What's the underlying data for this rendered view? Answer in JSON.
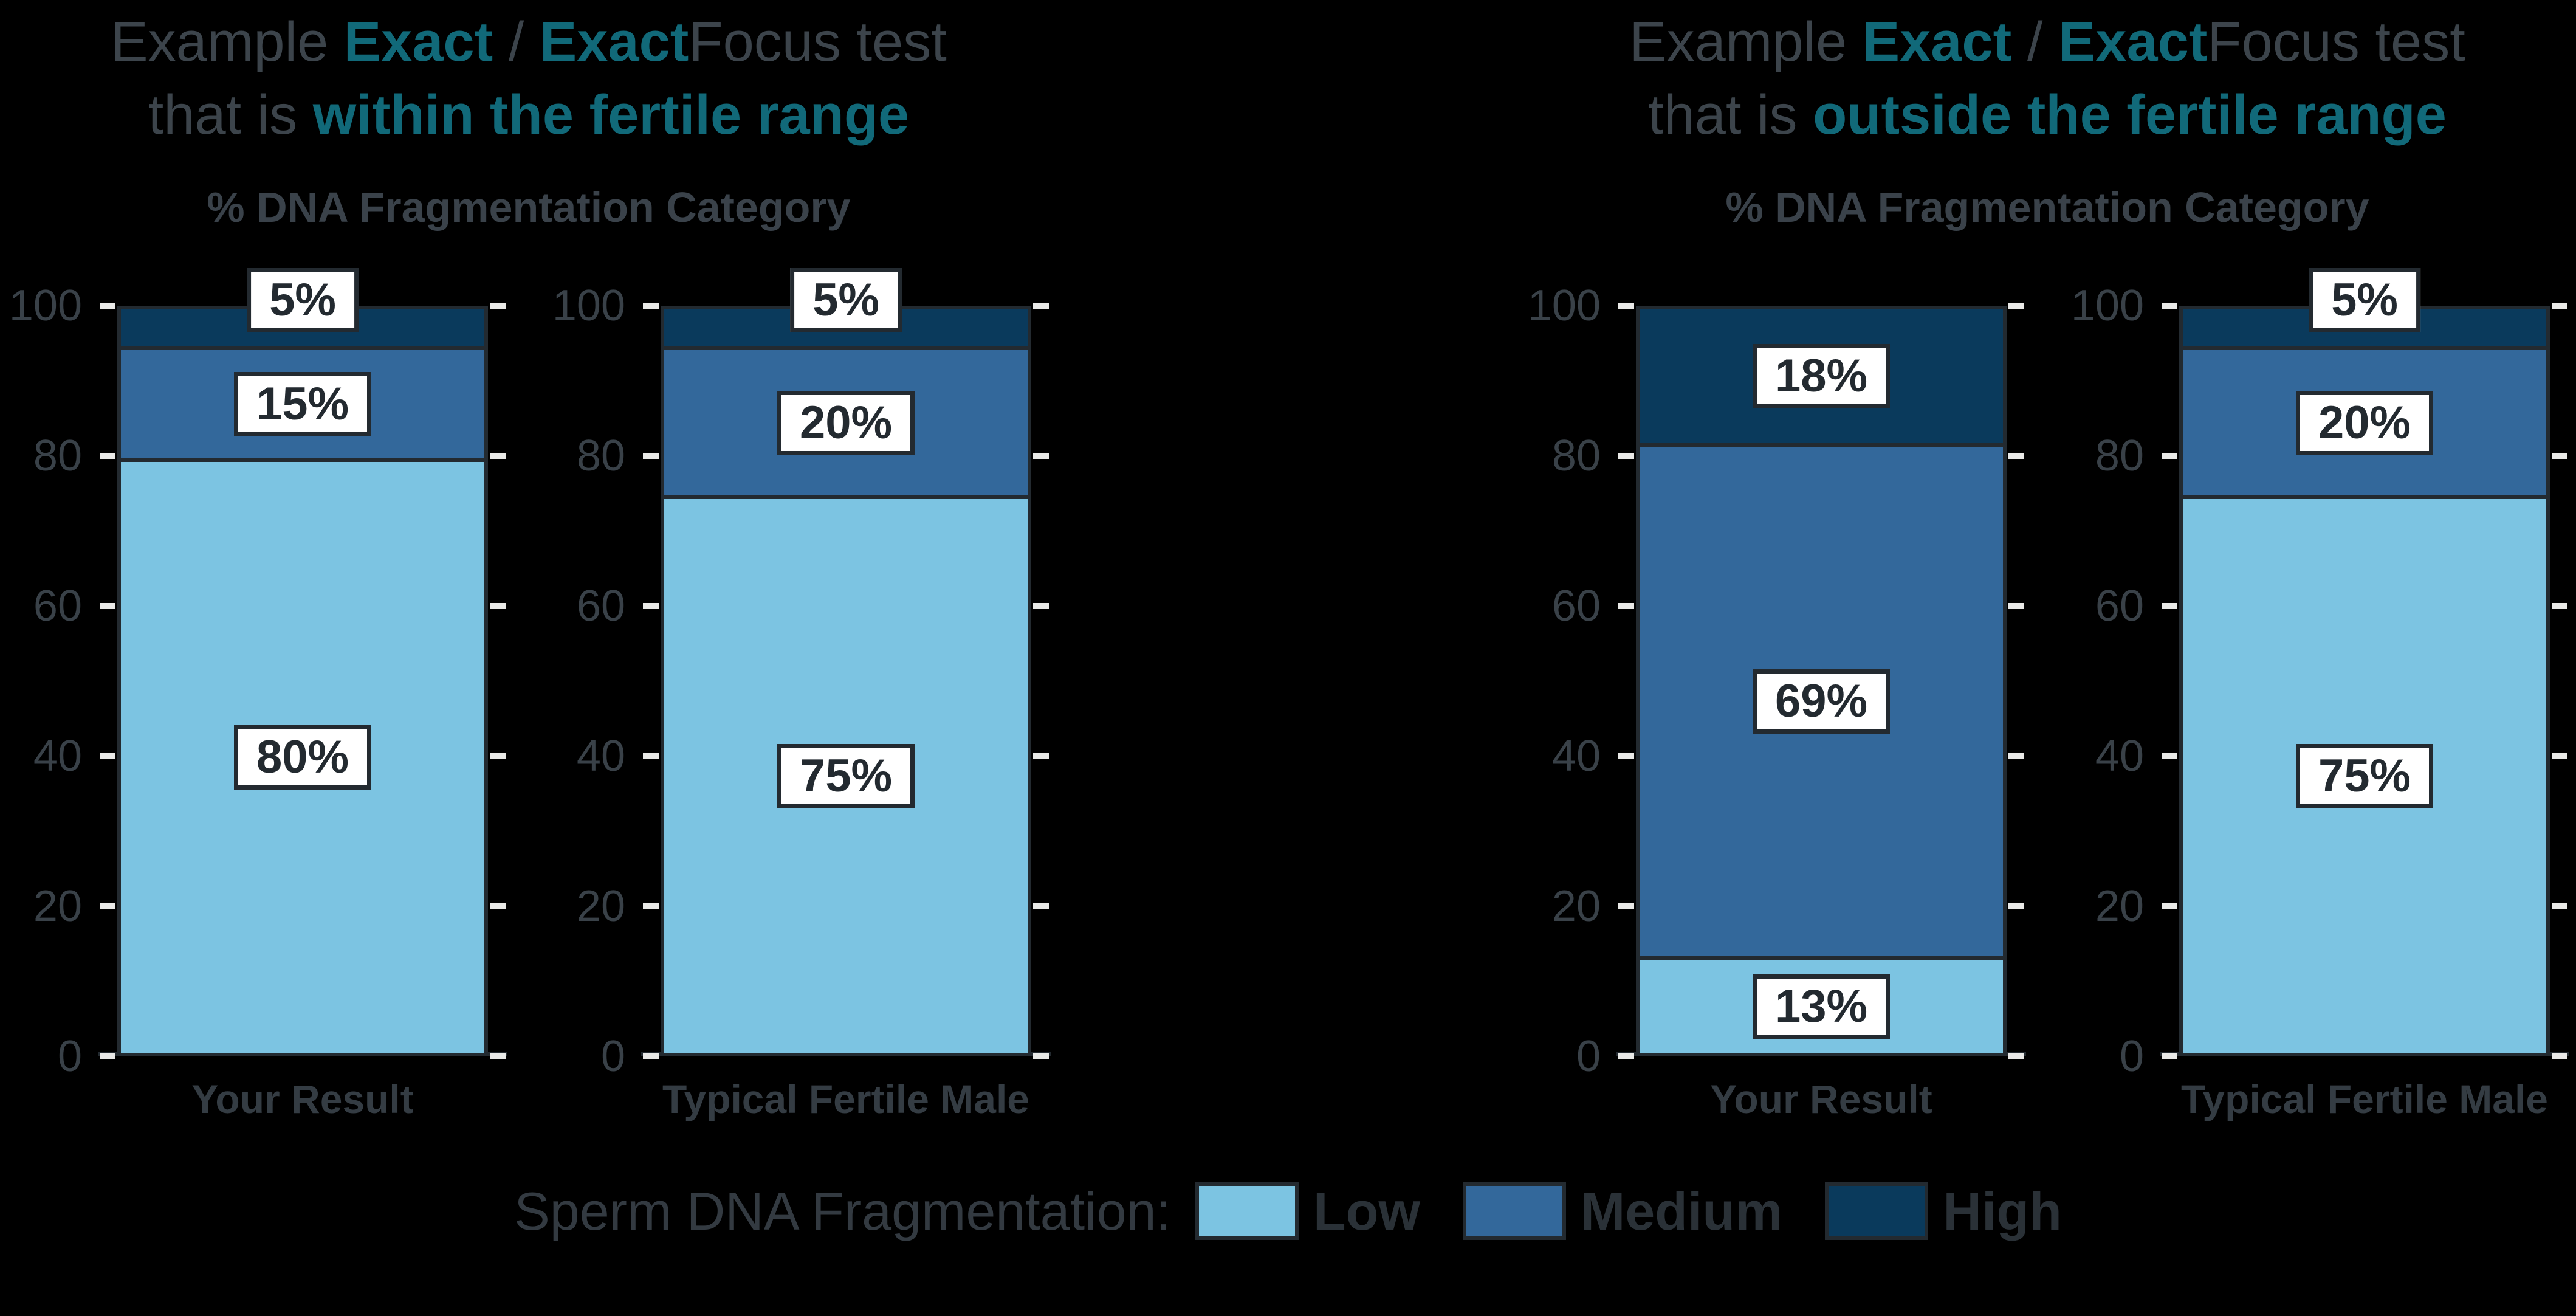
{
  "page": {
    "background": "#000000"
  },
  "colors": {
    "low": "#7CC4E2",
    "medium": "#33689B",
    "high": "#0A3A5C",
    "teal_accent": "#116979",
    "gray_text": "#3C444B",
    "tick_text": "#394148",
    "outline": "#232A30",
    "tick_mark": "#E9E9E7",
    "label_box_bg": "#FFFFFF"
  },
  "legend": {
    "title": "Sperm DNA Fragmentation:",
    "items": [
      {
        "label": "Low",
        "color_key": "low"
      },
      {
        "label": "Medium",
        "color_key": "medium"
      },
      {
        "label": "High",
        "color_key": "high"
      }
    ]
  },
  "chart_data": [
    {
      "type": "bar",
      "stacked": true,
      "title": {
        "line1": {
          "pre": "Example ",
          "brand1": "Exact",
          "sep": " / ",
          "brand2": "Exact",
          "post": "Focus test"
        },
        "line2": {
          "pre": "that is ",
          "emphasis": "within the fertile range"
        }
      },
      "subtitle": "% DNA Fragmentation Category",
      "categories": [
        "Your Result",
        "Typical Fertile Male"
      ],
      "series": [
        {
          "name": "Low",
          "values": [
            80,
            75
          ]
        },
        {
          "name": "Medium",
          "values": [
            15,
            20
          ]
        },
        {
          "name": "High",
          "values": [
            5,
            5
          ]
        }
      ],
      "data_labels": [
        [
          "80%",
          "15%",
          "5%"
        ],
        [
          "75%",
          "20%",
          "5%"
        ]
      ],
      "ylim": [
        0,
        100
      ],
      "yticks": [
        0,
        20,
        40,
        60,
        80,
        100
      ],
      "grid": false,
      "legend_position": "bottom-shared"
    },
    {
      "type": "bar",
      "stacked": true,
      "title": {
        "line1": {
          "pre": "Example ",
          "brand1": "Exact",
          "sep": " / ",
          "brand2": "Exact",
          "post": "Focus test"
        },
        "line2": {
          "pre": "that is ",
          "emphasis": "outside the fertile range"
        }
      },
      "subtitle": "% DNA Fragmentation Category",
      "categories": [
        "Your Result",
        "Typical Fertile Male"
      ],
      "series": [
        {
          "name": "Low",
          "values": [
            13,
            75
          ]
        },
        {
          "name": "Medium",
          "values": [
            69,
            20
          ]
        },
        {
          "name": "High",
          "values": [
            18,
            5
          ]
        }
      ],
      "data_labels": [
        [
          "13%",
          "69%",
          "18%"
        ],
        [
          "75%",
          "20%",
          "5%"
        ]
      ],
      "ylim": [
        0,
        100
      ],
      "yticks": [
        0,
        20,
        40,
        60,
        80,
        100
      ],
      "grid": false,
      "legend_position": "bottom-shared"
    }
  ]
}
